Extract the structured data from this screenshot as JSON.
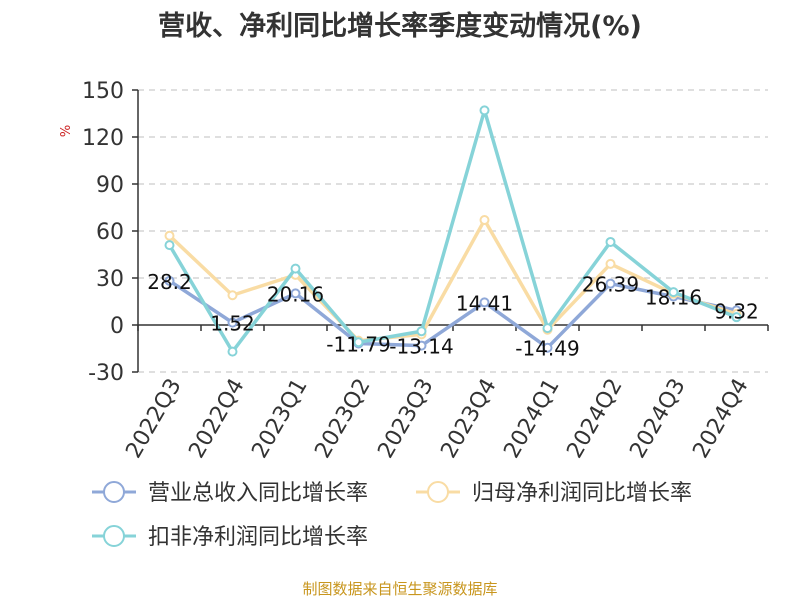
{
  "title": "营收、净利同比增长率季度变动情况(%)",
  "source": "制图数据来自恒生聚源数据库",
  "chart_data": {
    "type": "line",
    "y_unit": "%",
    "ylim": [
      -30,
      150
    ],
    "yticks": [
      150,
      120,
      90,
      60,
      30,
      0,
      -30
    ],
    "grid": true,
    "legend_position": "bottom",
    "categories": [
      "2022Q3",
      "2022Q4",
      "2023Q1",
      "2023Q2",
      "2023Q3",
      "2023Q4",
      "2024Q1",
      "2024Q2",
      "2024Q3",
      "2024Q4"
    ],
    "series": [
      {
        "name": "营业总收入同比增长率",
        "color": "#8fa8d8",
        "values": [
          28.2,
          1.52,
          20.16,
          -11.79,
          -13.14,
          14.41,
          -14.49,
          26.39,
          18.16,
          9.32
        ],
        "labels": [
          "28.2",
          "1.52",
          "20.16",
          "-11.79",
          "-13.14",
          "14.41",
          "-14.49",
          "26.39",
          "18.16",
          "9.32"
        ]
      },
      {
        "name": "归母净利润同比增长率",
        "color": "#f9dca4",
        "values": [
          57,
          19,
          32,
          -10,
          -6,
          67,
          -3,
          39,
          20,
          7
        ]
      },
      {
        "name": "扣非净利润同比增长率",
        "color": "#86d3d8",
        "values": [
          51,
          -17,
          36,
          -11,
          -4,
          137,
          -2,
          53,
          21,
          5
        ]
      }
    ]
  }
}
